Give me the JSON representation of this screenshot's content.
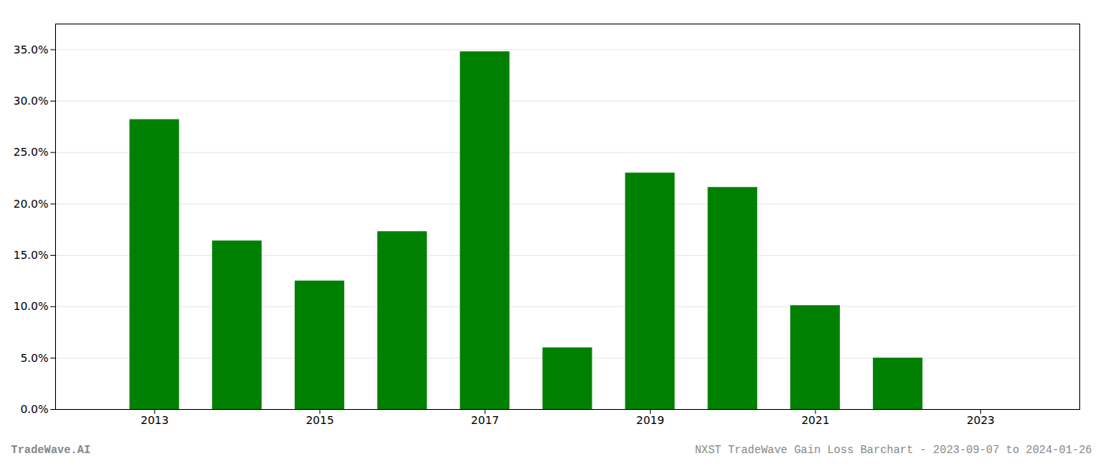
{
  "chart_data": {
    "type": "bar",
    "x": [
      2013,
      2014,
      2015,
      2016,
      2017,
      2018,
      2019,
      2020,
      2021,
      2022,
      2023
    ],
    "values": [
      0.282,
      0.164,
      0.125,
      0.173,
      0.348,
      0.06,
      0.23,
      0.216,
      0.101,
      0.05,
      0.0
    ],
    "color": "#008000",
    "xlim": [
      2011.8,
      2024.2
    ],
    "xticks": [
      2013,
      2015,
      2017,
      2019,
      2021,
      2023
    ],
    "ylim": [
      0,
      0.375
    ],
    "yticks": [
      {
        "value": 0.0,
        "label": "0.0%"
      },
      {
        "value": 0.05,
        "label": "5.0%"
      },
      {
        "value": 0.1,
        "label": "10.0%"
      },
      {
        "value": 0.15,
        "label": "15.0%"
      },
      {
        "value": 0.2,
        "label": "20.0%"
      },
      {
        "value": 0.25,
        "label": "25.0%"
      },
      {
        "value": 0.3,
        "label": "30.0%"
      },
      {
        "value": 0.35,
        "label": "35.0%"
      }
    ],
    "grid": true,
    "annotations": [
      "TradeWave.AI",
      "NXST TradeWave Gain Loss Barchart - 2023-09-07 to 2024-01-26"
    ]
  }
}
